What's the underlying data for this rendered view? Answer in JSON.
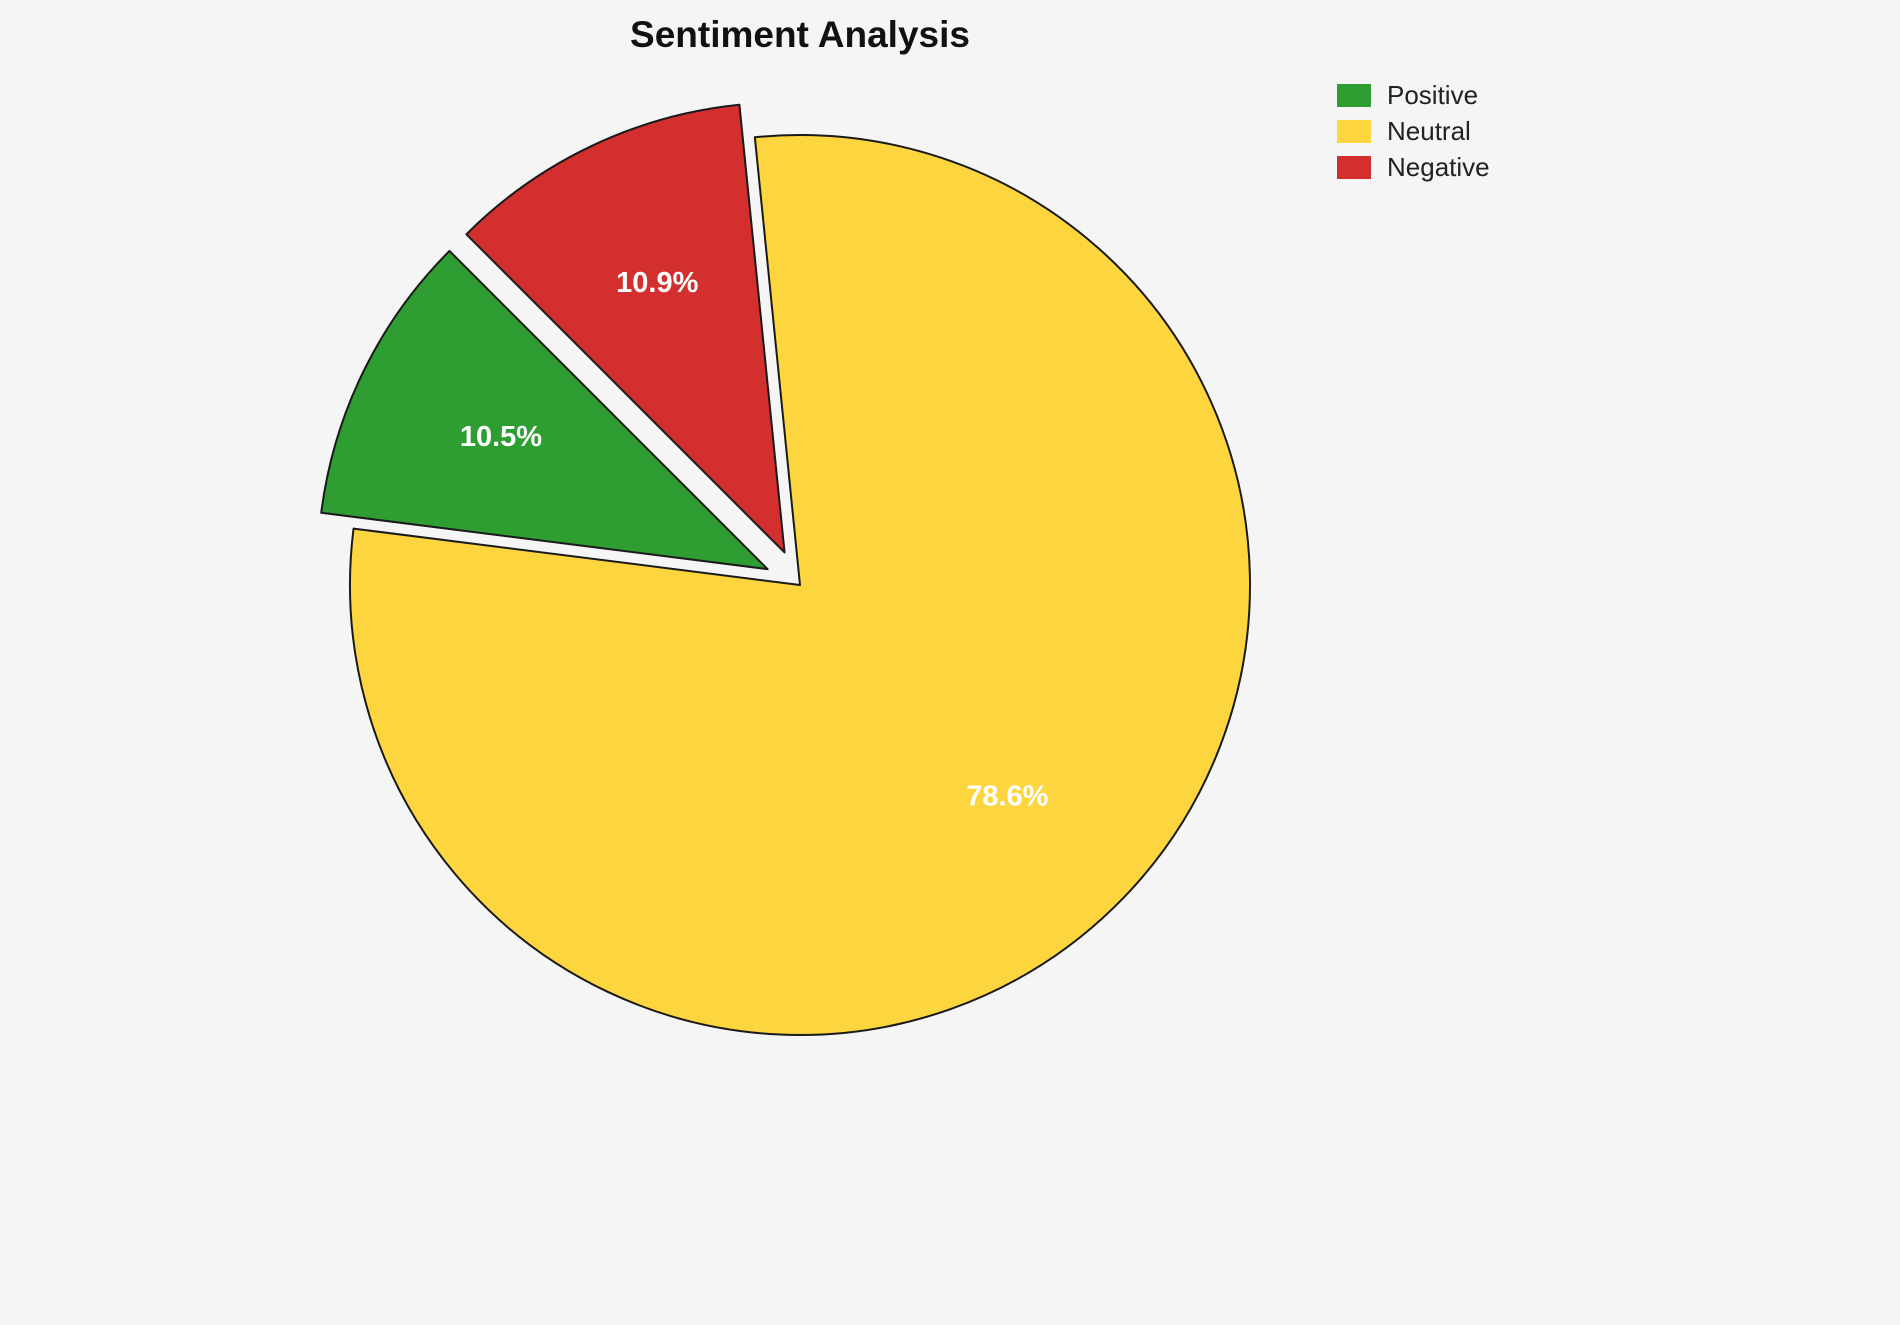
{
  "chart_data": {
    "type": "pie",
    "title": "Sentiment Analysis",
    "slices": [
      {
        "label": "Positive",
        "value": 10.5,
        "pct_label": "10.5%",
        "color": "#2e9d32",
        "explode": 0.08
      },
      {
        "label": "Neutral",
        "value": 78.6,
        "pct_label": "78.6%",
        "color": "#fcd53f",
        "explode": 0
      },
      {
        "label": "Negative",
        "value": 10.9,
        "pct_label": "10.9%",
        "color": "#d32f2f",
        "explode": 0.08
      }
    ],
    "start_angle": 135,
    "direction": "counterclockwise",
    "legend_position": "upper right",
    "legend_entries": [
      "Positive",
      "Neutral",
      "Negative"
    ],
    "pct_label_color": "#ffffff",
    "edge_color": "#1a1a1a",
    "background": "#f5f5f5"
  }
}
